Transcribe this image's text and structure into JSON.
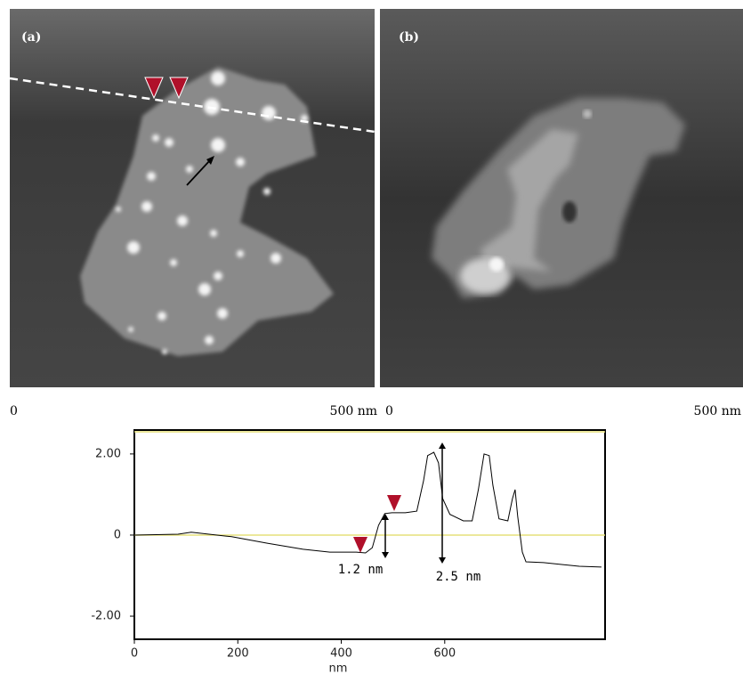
{
  "panels": [
    {
      "label": "(a)",
      "scale_start": "0",
      "scale_end": "500 nm"
    },
    {
      "label": "(b)",
      "scale_start": "0",
      "scale_end": "500 nm"
    }
  ],
  "chart_data": {
    "type": "line",
    "x_label": "nm",
    "x": [
      0,
      84.5,
      110,
      188,
      257,
      326,
      378,
      429,
      447,
      460,
      472,
      484,
      498,
      524,
      546,
      559,
      567,
      579,
      588,
      596,
      610,
      636,
      653,
      665,
      676,
      686,
      693,
      705,
      722,
      731,
      736,
      741,
      750,
      757,
      791,
      860,
      903
    ],
    "values": [
      0,
      0.02,
      0.07,
      -0.04,
      -0.2,
      -0.35,
      -0.42,
      -0.42,
      -0.44,
      -0.31,
      0.24,
      0.53,
      0.55,
      0.55,
      0.59,
      1.34,
      1.96,
      2.04,
      1.78,
      0.9,
      0.51,
      0.35,
      0.35,
      1.12,
      2.0,
      1.96,
      1.23,
      0.4,
      0.35,
      0.9,
      1.12,
      0.46,
      -0.42,
      -0.66,
      -0.68,
      -0.77,
      -0.79
    ],
    "color": "#000000",
    "xlim": [
      0,
      910
    ],
    "ylim": [
      -2.57,
      2.59
    ],
    "xticks": [
      0,
      200,
      400,
      600
    ],
    "yticks": [
      {
        "value": -2,
        "label": "-2.00"
      },
      0,
      {
        "value": 2,
        "label": "2.00"
      }
    ],
    "annotations": [
      "1.2 nm",
      "2.5 nm"
    ]
  }
}
